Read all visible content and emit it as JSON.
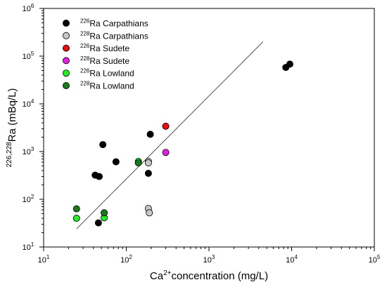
{
  "chart_data": {
    "type": "scatter",
    "xscale": "log",
    "yscale": "log",
    "xlim": [
      10,
      100000
    ],
    "ylim": [
      10,
      1000000
    ],
    "grid": false,
    "legend_position": "top-left",
    "x_ticks": [
      {
        "value": 10,
        "base": "10",
        "exp": "1"
      },
      {
        "value": 100,
        "base": "10",
        "exp": "2"
      },
      {
        "value": 1000,
        "base": "10",
        "exp": "3"
      },
      {
        "value": 10000,
        "base": "10",
        "exp": "4"
      },
      {
        "value": 100000,
        "base": "10",
        "exp": "5"
      }
    ],
    "y_ticks": [
      {
        "value": 10,
        "base": "10",
        "exp": "1"
      },
      {
        "value": 100,
        "base": "10",
        "exp": "2"
      },
      {
        "value": 1000,
        "base": "10",
        "exp": "3"
      },
      {
        "value": 10000,
        "base": "10",
        "exp": "4"
      },
      {
        "value": 100000,
        "base": "10",
        "exp": "5"
      },
      {
        "value": 1000000,
        "base": "10",
        "exp": "6"
      }
    ],
    "xlabel": {
      "pre": "Ca",
      "sup": "2+",
      "post": "concentration (mg/L)"
    },
    "ylabel": {
      "sup": "226,228",
      "post": "Ra (mBq/L)"
    },
    "series": [
      {
        "sup": "226",
        "name": "Ra Carpathians",
        "color": "#000000",
        "points": [
          [
            42,
            320
          ],
          [
            47,
            300
          ],
          [
            52,
            1400
          ],
          [
            75,
            610
          ],
          [
            185,
            350
          ],
          [
            195,
            2300
          ],
          [
            8500,
            58000
          ],
          [
            9500,
            68000
          ],
          [
            46,
            32
          ]
        ]
      },
      {
        "sup": "228",
        "name": "Ra Carpathians",
        "color": "#c8c8c8",
        "points": [
          [
            185,
            620
          ],
          [
            185,
            64
          ],
          [
            190,
            52
          ],
          [
            185,
            580
          ]
        ]
      },
      {
        "sup": "226",
        "name": "Ra Sudete",
        "color": "#e01010",
        "points": [
          [
            300,
            3400
          ]
        ]
      },
      {
        "sup": "228",
        "name": "Ra Sudete",
        "color": "#e020e0",
        "points": [
          [
            300,
            960
          ]
        ]
      },
      {
        "sup": "226",
        "name": "Ra Lowland",
        "color": "#22ee22",
        "points": [
          [
            25,
            40
          ],
          [
            54,
            41
          ],
          [
            140,
            620
          ]
        ]
      },
      {
        "sup": "228",
        "name": "Ra Lowland",
        "color": "#1a7a1a",
        "points": [
          [
            25,
            63
          ],
          [
            54,
            52
          ],
          [
            140,
            580
          ]
        ]
      }
    ],
    "trend_line": {
      "color": "#555555",
      "from": [
        25,
        24
      ],
      "to": [
        4500,
        200000
      ]
    }
  }
}
